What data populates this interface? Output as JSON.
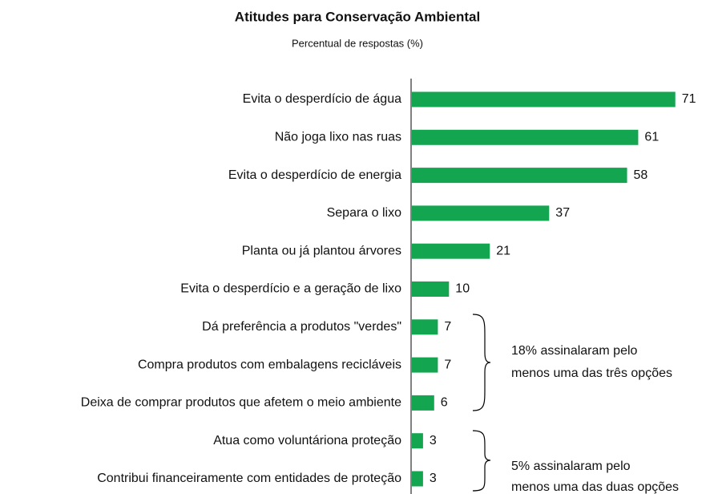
{
  "chart_data": {
    "type": "bar",
    "orientation": "horizontal",
    "title": "Atitudes para Conservação Ambiental",
    "subtitle": "Percentual de respostas (%)",
    "categories": [
      "Evita o desperdício de água",
      "Não joga lixo nas ruas",
      "Evita o desperdício de energia",
      "Separa o lixo",
      "Planta ou já plantou árvores",
      "Evita o desperdício e a geração de lixo",
      "Dá preferência a produtos \"verdes\"",
      "Compra produtos com embalagens recicláveis",
      "Deixa de comprar produtos que afetem o meio ambiente",
      "Atua como voluntáriona proteção",
      "Contribui financeiramente com entidades de proteção"
    ],
    "values": [
      71,
      61,
      58,
      37,
      21,
      10,
      7,
      7,
      6,
      3,
      3
    ],
    "color": "#13a54f",
    "annotations": [
      {
        "lines": [
          "18% assinalaram pelo",
          "menos uma das três opções"
        ]
      },
      {
        "lines": [
          "5% assinalaram pelo",
          "menos uma das duas opções"
        ]
      }
    ]
  }
}
